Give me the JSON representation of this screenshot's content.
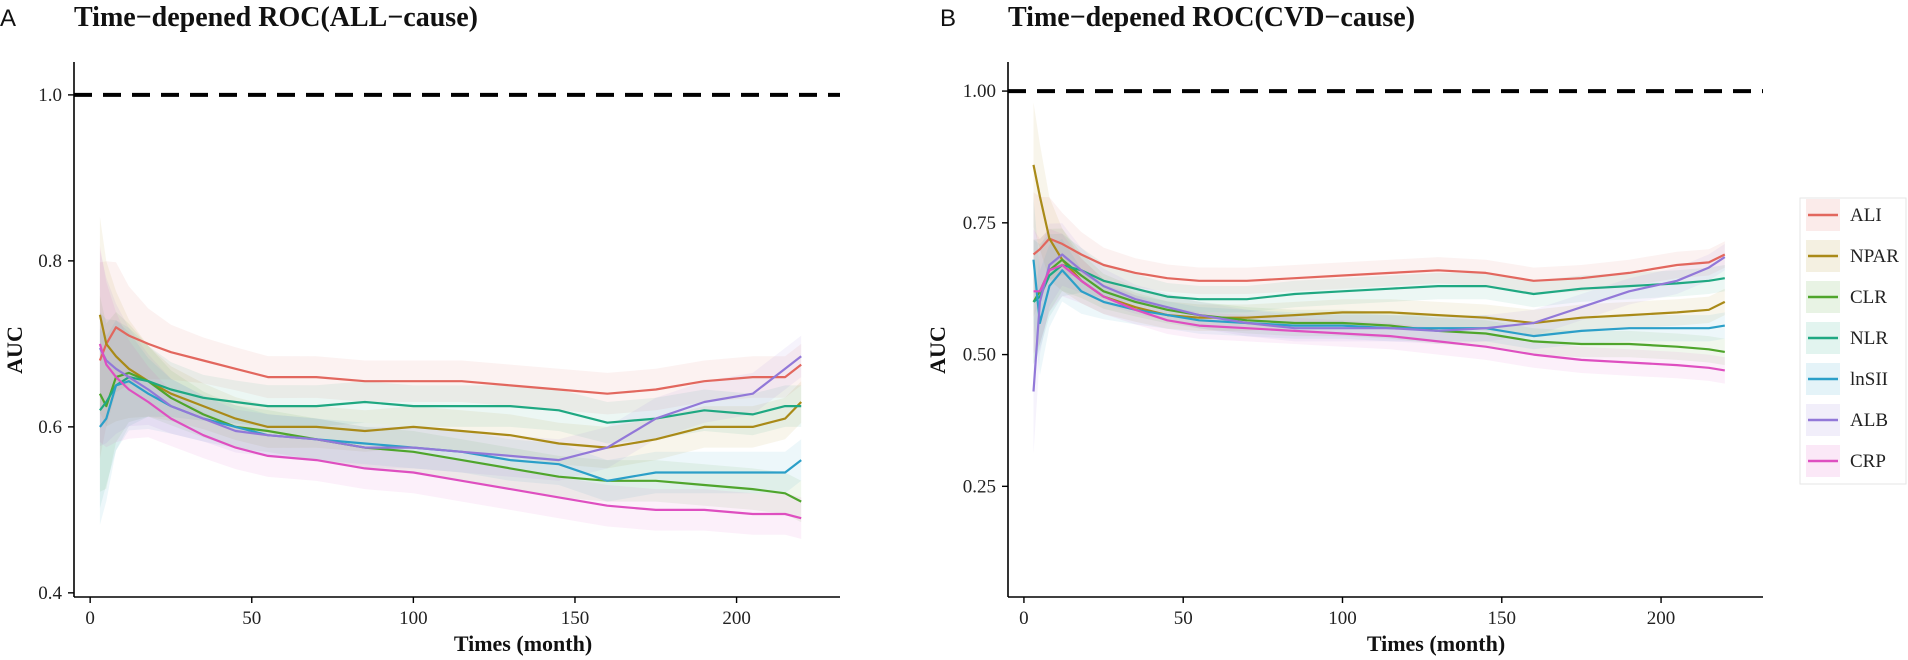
{
  "chart_data": [
    {
      "type": "line",
      "panel_label": "A",
      "title": "Time−depened ROC(ALL−cause)",
      "xlabel": "Times (month)",
      "ylabel": "AUC",
      "xlim": [
        -5,
        232
      ],
      "ylim": [
        0.395,
        1.03
      ],
      "xticks": [
        0,
        50,
        100,
        150,
        200
      ],
      "yticks": [
        0.4,
        0.6,
        0.8,
        1.0
      ],
      "ytick_labels": [
        "0.4",
        "0.6",
        "0.8",
        "1.0"
      ],
      "reference_line": 1.0,
      "series": [
        {
          "name": "ALI",
          "x": [
            3,
            5,
            8,
            12,
            18,
            25,
            35,
            45,
            55,
            70,
            85,
            100,
            115,
            130,
            145,
            160,
            175,
            190,
            205,
            215,
            220
          ],
          "values": [
            0.68,
            0.7,
            0.72,
            0.71,
            0.7,
            0.69,
            0.68,
            0.67,
            0.66,
            0.66,
            0.655,
            0.655,
            0.655,
            0.65,
            0.645,
            0.64,
            0.645,
            0.655,
            0.66,
            0.66,
            0.675
          ]
        },
        {
          "name": "NPAR",
          "x": [
            3,
            5,
            8,
            12,
            18,
            25,
            35,
            45,
            55,
            70,
            85,
            100,
            115,
            130,
            145,
            160,
            175,
            190,
            205,
            215,
            220
          ],
          "values": [
            0.735,
            0.7,
            0.685,
            0.67,
            0.655,
            0.64,
            0.625,
            0.61,
            0.6,
            0.6,
            0.595,
            0.6,
            0.595,
            0.59,
            0.58,
            0.575,
            0.585,
            0.6,
            0.6,
            0.61,
            0.63
          ]
        },
        {
          "name": "CLR",
          "x": [
            3,
            5,
            8,
            12,
            18,
            25,
            35,
            45,
            55,
            70,
            85,
            100,
            115,
            130,
            145,
            160,
            175,
            190,
            205,
            215,
            220
          ],
          "values": [
            0.64,
            0.625,
            0.66,
            0.665,
            0.655,
            0.635,
            0.615,
            0.6,
            0.595,
            0.585,
            0.575,
            0.57,
            0.56,
            0.55,
            0.54,
            0.535,
            0.535,
            0.53,
            0.525,
            0.52,
            0.51
          ]
        },
        {
          "name": "NLR",
          "x": [
            3,
            5,
            8,
            12,
            18,
            25,
            35,
            45,
            55,
            70,
            85,
            100,
            115,
            130,
            145,
            160,
            175,
            190,
            205,
            215,
            220
          ],
          "values": [
            0.62,
            0.63,
            0.65,
            0.66,
            0.655,
            0.645,
            0.635,
            0.63,
            0.625,
            0.625,
            0.63,
            0.625,
            0.625,
            0.625,
            0.62,
            0.605,
            0.61,
            0.62,
            0.615,
            0.625,
            0.625
          ]
        },
        {
          "name": "lnSII",
          "x": [
            3,
            5,
            8,
            12,
            18,
            25,
            35,
            45,
            55,
            70,
            85,
            100,
            115,
            130,
            145,
            160,
            175,
            190,
            205,
            215,
            220
          ],
          "values": [
            0.6,
            0.61,
            0.65,
            0.655,
            0.64,
            0.625,
            0.61,
            0.6,
            0.59,
            0.585,
            0.58,
            0.575,
            0.57,
            0.56,
            0.555,
            0.535,
            0.545,
            0.545,
            0.545,
            0.545,
            0.56
          ]
        },
        {
          "name": "ALB",
          "x": [
            3,
            5,
            8,
            12,
            18,
            25,
            35,
            45,
            55,
            70,
            85,
            100,
            115,
            130,
            145,
            160,
            175,
            190,
            205,
            215,
            220
          ],
          "values": [
            0.695,
            0.68,
            0.67,
            0.66,
            0.645,
            0.625,
            0.61,
            0.595,
            0.59,
            0.585,
            0.575,
            0.575,
            0.57,
            0.565,
            0.56,
            0.575,
            0.61,
            0.63,
            0.64,
            0.67,
            0.685
          ]
        },
        {
          "name": "CRP",
          "x": [
            3,
            5,
            8,
            12,
            18,
            25,
            35,
            45,
            55,
            70,
            85,
            100,
            115,
            130,
            145,
            160,
            175,
            190,
            205,
            215,
            220
          ],
          "values": [
            0.7,
            0.675,
            0.66,
            0.645,
            0.63,
            0.61,
            0.59,
            0.575,
            0.565,
            0.56,
            0.55,
            0.545,
            0.535,
            0.525,
            0.515,
            0.505,
            0.5,
            0.5,
            0.495,
            0.495,
            0.49
          ]
        }
      ]
    },
    {
      "type": "line",
      "panel_label": "B",
      "title": "Time−depened ROC(CVD−cause)",
      "xlabel": "Times (month)",
      "ylabel": "AUC",
      "xlim": [
        -5,
        232
      ],
      "ylim": [
        0.04,
        1.04
      ],
      "xticks": [
        0,
        50,
        100,
        150,
        200
      ],
      "yticks": [
        0.25,
        0.5,
        0.75,
        1.0
      ],
      "ytick_labels": [
        "0.25",
        "0.50",
        "0.75",
        "1.00"
      ],
      "reference_line": 1.0,
      "series": [
        {
          "name": "ALI",
          "x": [
            3,
            5,
            8,
            12,
            18,
            25,
            35,
            45,
            55,
            70,
            85,
            100,
            115,
            130,
            145,
            160,
            175,
            190,
            205,
            215,
            220
          ],
          "values": [
            0.69,
            0.7,
            0.72,
            0.71,
            0.69,
            0.67,
            0.655,
            0.645,
            0.64,
            0.64,
            0.645,
            0.65,
            0.655,
            0.66,
            0.655,
            0.64,
            0.645,
            0.655,
            0.67,
            0.675,
            0.69
          ]
        },
        {
          "name": "NPAR",
          "x": [
            3,
            5,
            8,
            12,
            18,
            25,
            35,
            45,
            55,
            70,
            85,
            100,
            115,
            130,
            145,
            160,
            175,
            190,
            205,
            215,
            220
          ],
          "values": [
            0.86,
            0.8,
            0.72,
            0.68,
            0.64,
            0.61,
            0.59,
            0.575,
            0.57,
            0.57,
            0.575,
            0.58,
            0.58,
            0.575,
            0.57,
            0.56,
            0.57,
            0.575,
            0.58,
            0.585,
            0.6
          ]
        },
        {
          "name": "CLR",
          "x": [
            3,
            5,
            8,
            12,
            18,
            25,
            35,
            45,
            55,
            70,
            85,
            100,
            115,
            130,
            145,
            160,
            175,
            190,
            205,
            215,
            220
          ],
          "values": [
            0.6,
            0.62,
            0.66,
            0.68,
            0.65,
            0.62,
            0.6,
            0.585,
            0.575,
            0.565,
            0.56,
            0.56,
            0.555,
            0.545,
            0.54,
            0.525,
            0.52,
            0.52,
            0.515,
            0.51,
            0.505
          ]
        },
        {
          "name": "NLR",
          "x": [
            3,
            5,
            8,
            12,
            18,
            25,
            35,
            45,
            55,
            70,
            85,
            100,
            115,
            130,
            145,
            160,
            175,
            190,
            205,
            215,
            220
          ],
          "values": [
            0.6,
            0.61,
            0.65,
            0.67,
            0.66,
            0.64,
            0.625,
            0.61,
            0.605,
            0.605,
            0.615,
            0.62,
            0.625,
            0.63,
            0.63,
            0.615,
            0.625,
            0.63,
            0.635,
            0.64,
            0.645
          ]
        },
        {
          "name": "lnSII",
          "x": [
            3,
            5,
            8,
            12,
            18,
            25,
            35,
            45,
            55,
            70,
            85,
            100,
            115,
            130,
            145,
            160,
            175,
            190,
            205,
            215,
            220
          ],
          "values": [
            0.68,
            0.56,
            0.63,
            0.66,
            0.62,
            0.6,
            0.585,
            0.575,
            0.565,
            0.56,
            0.555,
            0.555,
            0.55,
            0.55,
            0.55,
            0.535,
            0.545,
            0.55,
            0.55,
            0.55,
            0.555
          ]
        },
        {
          "name": "ALB",
          "x": [
            3,
            5,
            8,
            12,
            18,
            25,
            35,
            45,
            55,
            70,
            85,
            100,
            115,
            130,
            145,
            160,
            175,
            190,
            205,
            215,
            220
          ],
          "values": [
            0.43,
            0.6,
            0.67,
            0.69,
            0.66,
            0.63,
            0.605,
            0.59,
            0.575,
            0.56,
            0.55,
            0.55,
            0.55,
            0.545,
            0.55,
            0.56,
            0.59,
            0.62,
            0.64,
            0.665,
            0.685
          ]
        },
        {
          "name": "CRP",
          "x": [
            3,
            5,
            8,
            12,
            18,
            25,
            35,
            45,
            55,
            70,
            85,
            100,
            115,
            130,
            145,
            160,
            175,
            190,
            205,
            215,
            220
          ],
          "values": [
            0.62,
            0.62,
            0.66,
            0.67,
            0.64,
            0.61,
            0.585,
            0.565,
            0.555,
            0.55,
            0.545,
            0.54,
            0.535,
            0.525,
            0.515,
            0.5,
            0.49,
            0.485,
            0.48,
            0.475,
            0.47
          ]
        }
      ]
    }
  ],
  "legend": {
    "entries": [
      "ALI",
      "NPAR",
      "CLR",
      "NLR",
      "lnSII",
      "ALB",
      "CRP"
    ],
    "position": "right"
  },
  "colors": {
    "ALI": "#E2675E",
    "NPAR": "#A98A18",
    "CLR": "#4FA52C",
    "NLR": "#1FA882",
    "lnSII": "#2B9FC8",
    "ALB": "#9278D8",
    "CRP": "#DE4FC0"
  }
}
